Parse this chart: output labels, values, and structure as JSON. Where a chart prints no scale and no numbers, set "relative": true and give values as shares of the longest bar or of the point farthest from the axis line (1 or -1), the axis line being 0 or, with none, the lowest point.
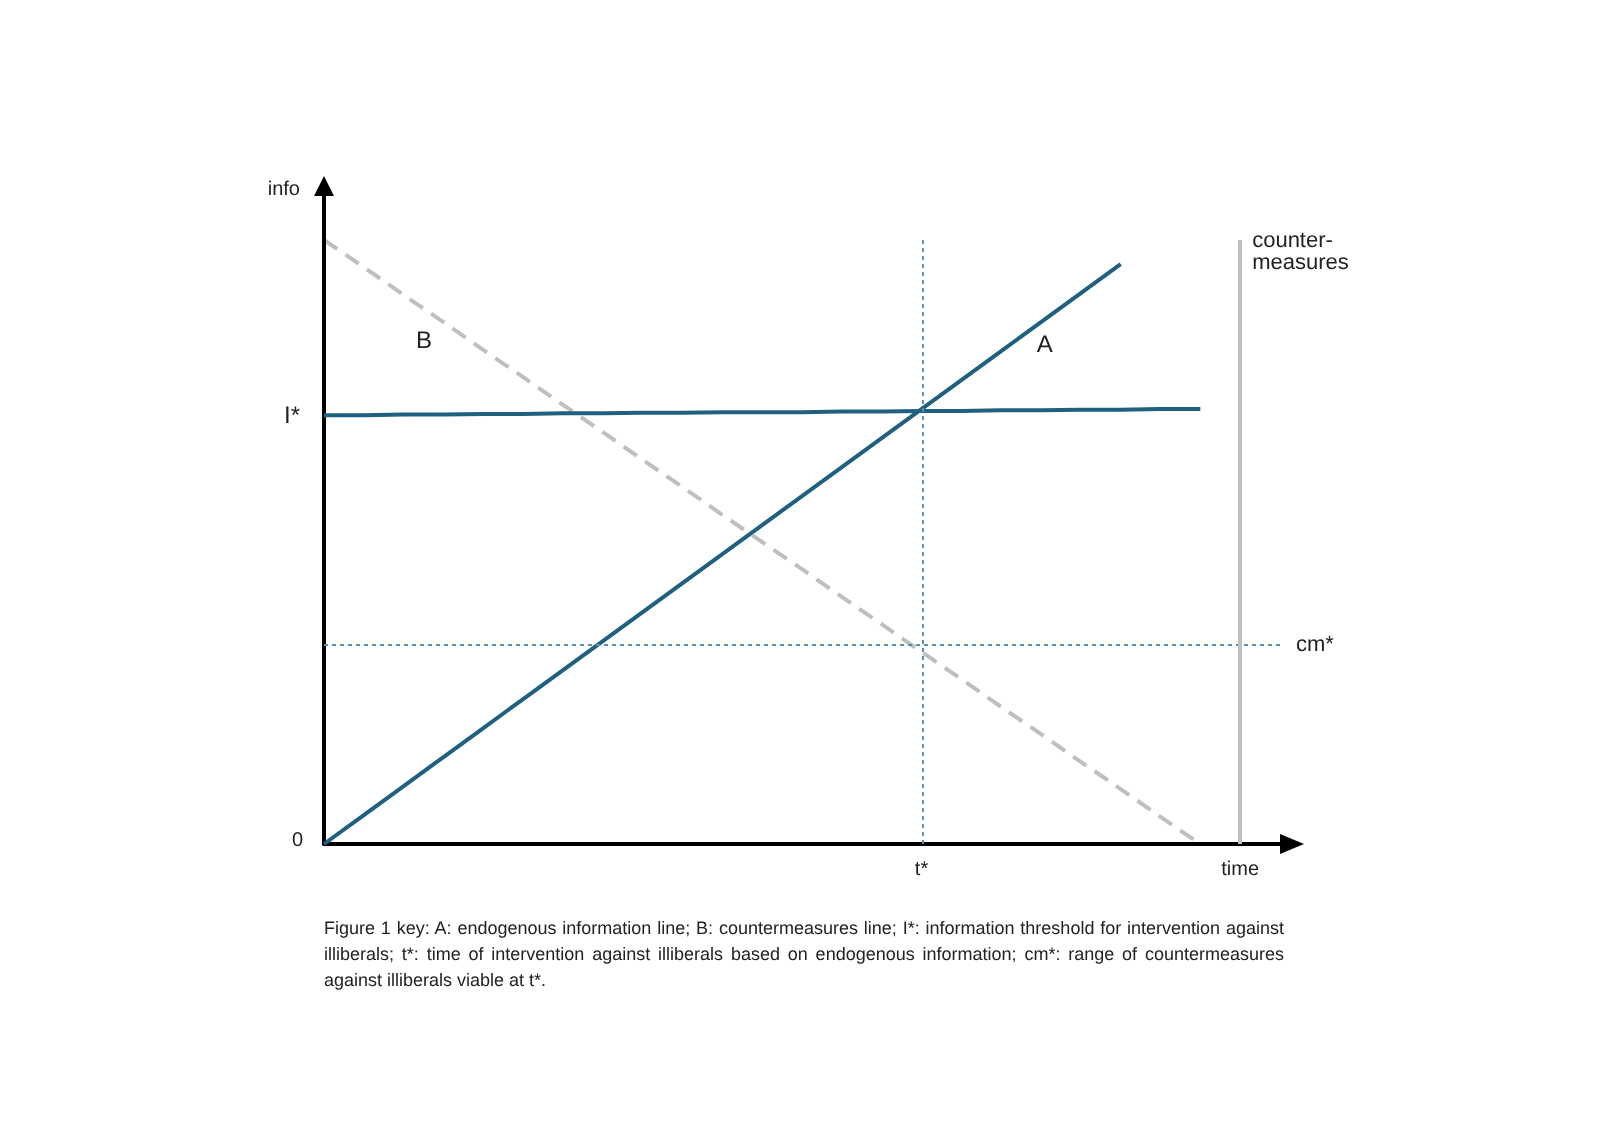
{
  "chart_data": {
    "type": "line",
    "relative": true,
    "ylabel": "info",
    "categories": [
      null,
      null,
      null,
      null,
      null,
      null,
      null,
      null,
      null,
      null,
      null,
      null,
      null,
      null,
      null,
      "t*",
      null,
      null,
      null,
      null,
      null,
      null,
      null,
      "time",
      null
    ],
    "series": [
      {
        "name": "A",
        "color": "#1f5f7f",
        "values": [
          0,
          0.048,
          0.096,
          0.144,
          0.192,
          0.24,
          0.288,
          0.336,
          0.384,
          0.432,
          0.48,
          0.528,
          0.576,
          0.624,
          0.672,
          0.72,
          0.768,
          0.816,
          0.864,
          0.912,
          0.96,
          null,
          null,
          null,
          null
        ]
      },
      {
        "name": "B",
        "color": "#bfbfbf",
        "line_style": "dashed",
        "values": [
          1,
          0.955,
          0.909,
          0.864,
          0.818,
          0.773,
          0.727,
          0.682,
          0.636,
          0.591,
          0.545,
          0.5,
          0.455,
          0.409,
          0.364,
          0.318,
          0.273,
          0.227,
          0.182,
          0.136,
          0.091,
          0.045,
          0,
          null,
          null
        ]
      },
      {
        "name": "I*",
        "color": "#1f5f7f",
        "values": [
          0.71,
          0.71,
          0.711,
          0.711,
          0.712,
          0.712,
          0.713,
          0.713,
          0.714,
          0.714,
          0.715,
          0.715,
          0.715,
          0.716,
          0.716,
          0.717,
          0.717,
          0.718,
          0.718,
          0.719,
          0.719,
          0.72,
          0.72,
          null,
          null
        ]
      }
    ],
    "ref_lines": [
      {
        "axis": "x",
        "value": "t*",
        "color": "#5b8fb0",
        "line_style": "dotted"
      },
      {
        "axis": "y",
        "value": 0.33,
        "label": "cm*",
        "color": "#5b8fb0",
        "line_style": "dotted"
      },
      {
        "axis": "x",
        "value": "time",
        "label": "counter- measures",
        "color": "#bfbfbf",
        "line_style": "solid"
      }
    ],
    "annotations": [
      "0",
      "Figure 1 key: A: endogenous information line; B: countermeasures line; I*: information threshold for intervention against illiberals; t*: time of intervention against illiberals based on endogenous information; cm*: range of countermeasures against illiberals viable at t*."
    ],
    "marker": "none",
    "grid": false,
    "legend": false
  }
}
